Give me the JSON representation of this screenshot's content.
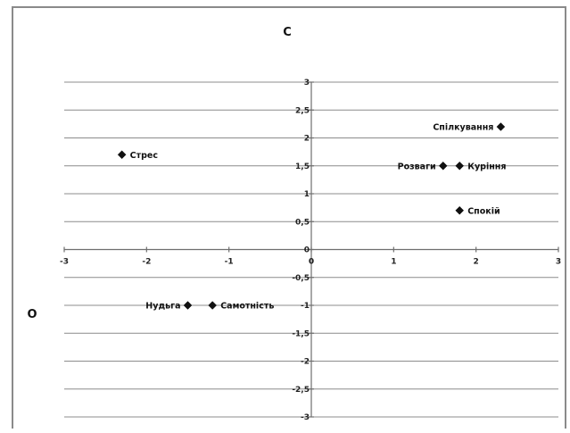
{
  "chart_data": {
    "type": "scatter",
    "title": "",
    "top_label": "С",
    "left_label": "О",
    "xlim": [
      -3,
      3
    ],
    "ylim": [
      -3,
      3
    ],
    "x_ticks": [
      "-3",
      "-2",
      "-1",
      "0",
      "1",
      "2",
      "3"
    ],
    "y_ticks": [
      "3",
      "2,5",
      "2",
      "1,5",
      "1",
      "0,5",
      "0",
      "-0,5",
      "-1",
      "-1,5",
      "-2",
      "-2,5",
      "-3"
    ],
    "grid": true,
    "marker": "diamond",
    "points": [
      {
        "label": "Стрес",
        "x": -2.3,
        "y": 1.7,
        "label_side": "right"
      },
      {
        "label": "Спілкування",
        "x": 2.3,
        "y": 2.2,
        "label_side": "left"
      },
      {
        "label": "Розваги",
        "x": 1.6,
        "y": 1.5,
        "label_side": "left"
      },
      {
        "label": "Куріння",
        "x": 1.8,
        "y": 1.5,
        "label_side": "right"
      },
      {
        "label": "Спокій",
        "x": 1.8,
        "y": 0.7,
        "label_side": "right"
      },
      {
        "label": "Нудьга",
        "x": -1.5,
        "y": -1.0,
        "label_side": "left"
      },
      {
        "label": "Самотність",
        "x": -1.2,
        "y": -1.0,
        "label_side": "right"
      }
    ]
  }
}
